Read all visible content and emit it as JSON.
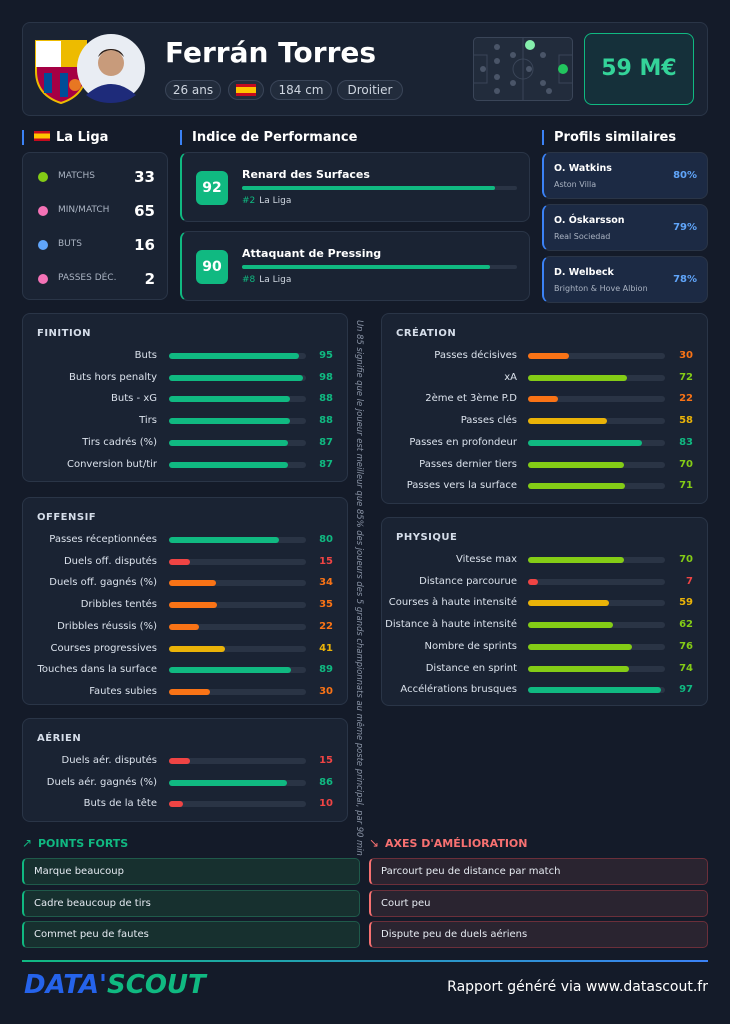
{
  "header": {
    "name": "Ferrán Torres",
    "tags": [
      "26 ans",
      "184 cm",
      "Droitier"
    ],
    "market_value": "59 M€"
  },
  "league": {
    "title": "La Liga",
    "stats": [
      {
        "label": "MATCHS",
        "value": 33
      },
      {
        "label": "MIN/MATCH",
        "value": 65
      },
      {
        "label": "BUTS",
        "value": 16
      },
      {
        "label": "PASSES DÉC.",
        "value": 2
      }
    ]
  },
  "performance": {
    "title": "Indice de Performance",
    "items": [
      {
        "score": 92,
        "name": "Renard des Surfaces",
        "rank": "#2",
        "league": "La Liga"
      },
      {
        "score": 90,
        "name": "Attaquant de Pressing",
        "rank": "#8",
        "league": "La Liga"
      }
    ]
  },
  "similar": {
    "title": "Profils similaires",
    "items": [
      {
        "name": "O. Watkins",
        "club": "Aston Villa",
        "match": "80%"
      },
      {
        "name": "O. Óskarsson",
        "club": "Real Sociedad",
        "match": "79%"
      },
      {
        "name": "D. Welbeck",
        "club": "Brighton & Hove Albion",
        "match": "78%"
      }
    ]
  },
  "stat_sections": [
    {
      "title": "FINITION",
      "rows": [
        {
          "label": "Buts",
          "value": 95
        },
        {
          "label": "Buts hors penalty",
          "value": 98
        },
        {
          "label": "Buts - xG",
          "value": 88
        },
        {
          "label": "Tirs",
          "value": 88
        },
        {
          "label": "Tirs cadrés (%)",
          "value": 87
        },
        {
          "label": "Conversion but/tir",
          "value": 87
        }
      ]
    },
    {
      "title": "OFFENSIF",
      "rows": [
        {
          "label": "Passes réceptionnées",
          "value": 80
        },
        {
          "label": "Duels off. disputés",
          "value": 15
        },
        {
          "label": "Duels off. gagnés (%)",
          "value": 34
        },
        {
          "label": "Dribbles tentés",
          "value": 35
        },
        {
          "label": "Dribbles réussis (%)",
          "value": 22
        },
        {
          "label": "Courses progressives",
          "value": 41
        },
        {
          "label": "Touches dans la surface",
          "value": 89
        },
        {
          "label": "Fautes subies",
          "value": 30
        }
      ]
    },
    {
      "title": "AÉRIEN",
      "rows": [
        {
          "label": "Duels aér. disputés",
          "value": 15
        },
        {
          "label": "Duels aér. gagnés (%)",
          "value": 86
        },
        {
          "label": "Buts de la tête",
          "value": 10
        }
      ]
    },
    {
      "title": "CRÉATION",
      "rows": [
        {
          "label": "Passes décisives",
          "value": 30
        },
        {
          "label": "xA",
          "value": 72
        },
        {
          "label": "2ème et 3ème P.D",
          "value": 22
        },
        {
          "label": "Passes clés",
          "value": 58
        },
        {
          "label": "Passes en profondeur",
          "value": 83
        },
        {
          "label": "Passes dernier tiers",
          "value": 70
        },
        {
          "label": "Passes vers la surface",
          "value": 71
        }
      ]
    },
    {
      "title": "PHYSIQUE",
      "rows": [
        {
          "label": "Vitesse max",
          "value": 70
        },
        {
          "label": "Distance parcourue",
          "value": 7
        },
        {
          "label": "Courses à haute intensité",
          "value": 59
        },
        {
          "label": "Distance à haute intensité",
          "value": 62
        },
        {
          "label": "Nombre de sprints",
          "value": 76
        },
        {
          "label": "Distance en sprint",
          "value": 74
        },
        {
          "label": "Accélérations brusques",
          "value": 97
        }
      ]
    }
  ],
  "note": "Un 85 signifie que le joueur est meilleur que 85% des joueurs des 5 grands championnats au même poste principal, par 90 min",
  "strengths": {
    "title": "POINTS FORTS",
    "items": [
      "Marque beaucoup",
      "Cadre beaucoup de tirs",
      "Commet peu de fautes"
    ]
  },
  "improvements": {
    "title": "AXES D'AMÉLIORATION",
    "items": [
      "Parcourt peu de distance par match",
      "Court peu",
      "Dispute peu de duels aériens"
    ]
  },
  "footer": {
    "logo": [
      "DATA'",
      "SCOUT"
    ],
    "text": "Rapport généré via www.datascout.fr"
  }
}
